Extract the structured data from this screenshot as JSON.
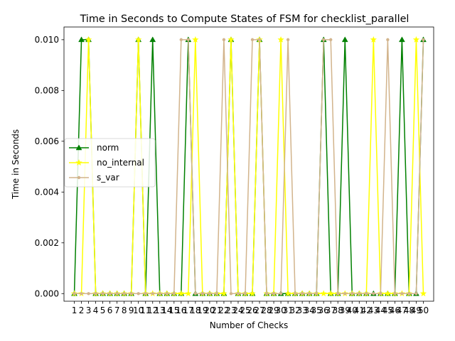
{
  "chart_data": {
    "type": "line",
    "title": "Time in Seconds to Compute States of FSM for checklist_parallel",
    "xlabel": "Number of Checks",
    "ylabel": "Time in Seconds",
    "ylim": [
      -0.0003,
      0.0105
    ],
    "y_ticks": [
      "0.000",
      "0.002",
      "0.004",
      "0.006",
      "0.008",
      "0.010"
    ],
    "x": [
      1,
      2,
      3,
      4,
      5,
      6,
      7,
      8,
      9,
      10,
      11,
      12,
      13,
      14,
      15,
      16,
      17,
      18,
      19,
      20,
      21,
      22,
      23,
      24,
      25,
      26,
      27,
      28,
      29,
      30,
      31,
      32,
      33,
      34,
      35,
      36,
      37,
      38,
      39,
      40,
      41,
      42,
      43,
      44,
      45,
      46,
      47,
      48,
      49,
      50
    ],
    "legend_position": "center-left",
    "grid": false,
    "series": [
      {
        "name": "norm",
        "color": "#008000",
        "marker": "triangle",
        "values": [
          0,
          0.01,
          0.01,
          0,
          0,
          0,
          0,
          0,
          0,
          0.01,
          0,
          0.01,
          0,
          0,
          0,
          0,
          0.01,
          0,
          0,
          0,
          0,
          0,
          0.01,
          0,
          0,
          0,
          0.01,
          0,
          0,
          0,
          0,
          0,
          0,
          0,
          0,
          0.01,
          0,
          0,
          0.01,
          0,
          0,
          0,
          0,
          0,
          0,
          0,
          0.01,
          0,
          0,
          0.01
        ]
      },
      {
        "name": "no_internal",
        "color": "#ffff00",
        "marker": "star",
        "values": [
          0,
          0,
          0.01,
          0,
          0,
          0,
          0,
          0,
          0,
          0.01,
          0,
          0,
          0,
          0,
          0,
          0,
          0,
          0.01,
          0,
          0,
          0,
          0,
          0.01,
          0,
          0,
          0,
          0.01,
          0,
          0,
          0.01,
          0,
          0,
          0,
          0,
          0,
          0,
          0,
          0,
          0,
          0,
          0,
          0,
          0.01,
          0,
          0,
          0,
          0,
          0,
          0.01,
          0
        ]
      },
      {
        "name": "s_var",
        "color": "#d2b48c",
        "marker": "circle",
        "values": [
          0,
          0,
          0,
          0,
          0,
          0,
          0,
          0,
          0,
          0,
          0,
          0,
          0,
          0,
          0,
          0.01,
          0.01,
          0,
          0,
          0,
          0,
          0.01,
          0,
          0,
          0,
          0.01,
          0.01,
          0,
          0,
          0,
          0.01,
          0,
          0,
          0,
          0,
          0.01,
          0.01,
          0,
          0,
          0,
          0,
          0,
          0,
          0,
          0.01,
          0,
          0,
          0,
          0,
          0.01
        ]
      }
    ]
  }
}
